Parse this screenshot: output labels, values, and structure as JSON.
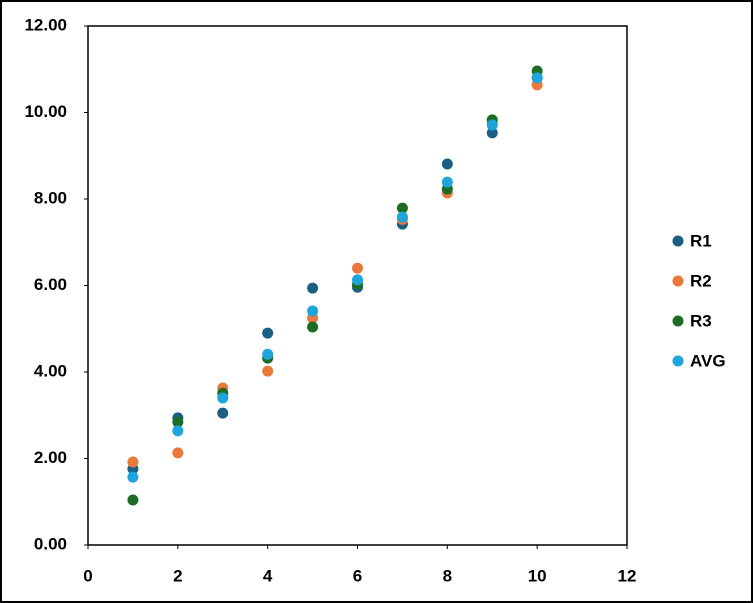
{
  "chart_data": {
    "type": "scatter",
    "xlim": [
      0,
      12
    ],
    "xticks": [
      0,
      2,
      4,
      6,
      8,
      10,
      12
    ],
    "ylim": [
      0,
      12
    ],
    "yticks": [
      {
        "value": 0,
        "label": "0.00"
      },
      {
        "value": 2,
        "label": "2.00"
      },
      {
        "value": 4,
        "label": "4.00"
      },
      {
        "value": 6,
        "label": "6.00"
      },
      {
        "value": 8,
        "label": "8.00"
      },
      {
        "value": 10,
        "label": "10.00"
      },
      {
        "value": 12,
        "label": "12.00"
      }
    ],
    "legend": "right",
    "series": [
      {
        "name": "R1",
        "color": "#1c5f85",
        "x": [
          1,
          2,
          3,
          4,
          5,
          6,
          7,
          8,
          9,
          10
        ],
        "values": [
          1.76,
          2.94,
          3.05,
          4.9,
          5.94,
          5.96,
          7.42,
          8.81,
          9.53,
          10.8
        ]
      },
      {
        "name": "R2",
        "color": "#e97a3c",
        "x": [
          1,
          2,
          3,
          4,
          5,
          6,
          7,
          8,
          9,
          10
        ],
        "values": [
          1.92,
          2.13,
          3.63,
          4.02,
          5.25,
          6.4,
          7.53,
          8.14,
          9.77,
          10.64
        ]
      },
      {
        "name": "R3",
        "color": "#1e6b25",
        "x": [
          1,
          2,
          3,
          4,
          5,
          6,
          7,
          8,
          9,
          10
        ],
        "values": [
          1.04,
          2.84,
          3.51,
          4.32,
          5.04,
          6.03,
          7.79,
          8.23,
          9.83,
          10.96
        ]
      },
      {
        "name": "AVG",
        "color": "#1ea6dc",
        "x": [
          1,
          2,
          3,
          4,
          5,
          6,
          7,
          8,
          9,
          10
        ],
        "values": [
          1.57,
          2.64,
          3.4,
          4.41,
          5.41,
          6.13,
          7.58,
          8.39,
          9.71,
          10.8
        ]
      }
    ]
  }
}
